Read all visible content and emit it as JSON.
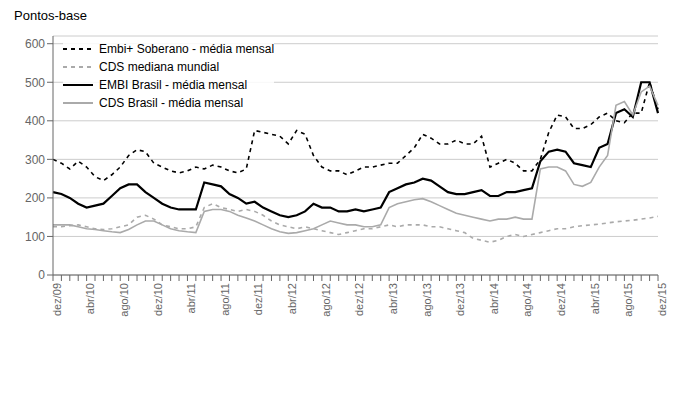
{
  "chart_data": {
    "type": "line",
    "ylabel": "Pontos-base",
    "categories": [
      "dez/09",
      null,
      null,
      null,
      "abr/10",
      null,
      null,
      null,
      "ago/10",
      null,
      null,
      null,
      "dez/10",
      null,
      null,
      null,
      "abr/11",
      null,
      null,
      null,
      "ago/11",
      null,
      null,
      null,
      "dez/11",
      null,
      null,
      null,
      "abr/12",
      null,
      null,
      null,
      "ago/12",
      null,
      null,
      null,
      "dez/12",
      null,
      null,
      null,
      "abr/13",
      null,
      null,
      null,
      "ago/13",
      null,
      null,
      null,
      "dez/13",
      null,
      null,
      null,
      "abr/14",
      null,
      null,
      null,
      "ago/14",
      null,
      null,
      null,
      "dez/14",
      null,
      null,
      null,
      "abr/15",
      null,
      null,
      null,
      "ago/15",
      null,
      null,
      null,
      "dez/15"
    ],
    "series": [
      {
        "name": "Embi+ Soberano - média mensal",
        "color": "#000000",
        "line_style": "dashed",
        "values": [
          300,
          290,
          275,
          295,
          280,
          255,
          245,
          260,
          280,
          310,
          325,
          320,
          290,
          280,
          270,
          265,
          270,
          280,
          275,
          285,
          280,
          270,
          265,
          275,
          375,
          370,
          365,
          360,
          340,
          375,
          365,
          310,
          280,
          270,
          270,
          260,
          270,
          280,
          280,
          285,
          290,
          290,
          310,
          330,
          365,
          355,
          340,
          340,
          350,
          340,
          340,
          360,
          280,
          290,
          300,
          290,
          270,
          270,
          300,
          370,
          415,
          410,
          380,
          380,
          390,
          410,
          420,
          400,
          395,
          420,
          420,
          500,
          430
        ]
      },
      {
        "name": "CDS mediana mundial",
        "color": "#aaaaaa",
        "line_style": "dashed",
        "values": [
          125,
          125,
          128,
          130,
          125,
          120,
          118,
          120,
          125,
          130,
          150,
          155,
          145,
          130,
          125,
          120,
          120,
          125,
          175,
          185,
          175,
          170,
          165,
          170,
          165,
          155,
          140,
          130,
          125,
          120,
          125,
          120,
          115,
          110,
          105,
          110,
          115,
          120,
          120,
          125,
          130,
          125,
          130,
          130,
          130,
          125,
          125,
          120,
          115,
          110,
          95,
          90,
          85,
          90,
          100,
          105,
          100,
          105,
          110,
          115,
          120,
          120,
          125,
          128,
          130,
          132,
          135,
          138,
          140,
          142,
          145,
          148,
          152
        ]
      },
      {
        "name": "EMBI Brasil - média mensal",
        "color": "#000000",
        "line_style": "solid",
        "values": [
          215,
          210,
          200,
          185,
          175,
          180,
          185,
          205,
          225,
          235,
          235,
          215,
          200,
          185,
          175,
          170,
          170,
          170,
          240,
          235,
          230,
          210,
          200,
          185,
          190,
          175,
          165,
          155,
          150,
          155,
          165,
          185,
          175,
          175,
          165,
          165,
          170,
          165,
          170,
          175,
          215,
          225,
          235,
          240,
          250,
          245,
          230,
          215,
          210,
          210,
          215,
          220,
          205,
          205,
          215,
          215,
          220,
          225,
          295,
          320,
          325,
          320,
          290,
          285,
          280,
          330,
          340,
          420,
          430,
          410,
          500,
          500,
          420
        ]
      },
      {
        "name": "CDS Brasil - média mensal",
        "color": "#aaaaaa",
        "line_style": "solid",
        "values": [
          130,
          130,
          130,
          125,
          120,
          118,
          115,
          112,
          110,
          118,
          130,
          140,
          140,
          130,
          120,
          115,
          112,
          110,
          165,
          170,
          170,
          165,
          155,
          148,
          140,
          130,
          120,
          112,
          108,
          110,
          115,
          120,
          130,
          140,
          135,
          130,
          130,
          125,
          125,
          130,
          175,
          185,
          190,
          195,
          198,
          190,
          180,
          170,
          160,
          155,
          150,
          145,
          140,
          145,
          145,
          150,
          145,
          145,
          275,
          280,
          280,
          270,
          235,
          230,
          240,
          280,
          310,
          440,
          450,
          415,
          475,
          490,
          440
        ]
      }
    ],
    "ylim": [
      0,
      620
    ],
    "yticks": [
      0,
      100,
      200,
      300,
      400,
      500,
      600
    ],
    "grid": true,
    "legend": "upper left"
  }
}
